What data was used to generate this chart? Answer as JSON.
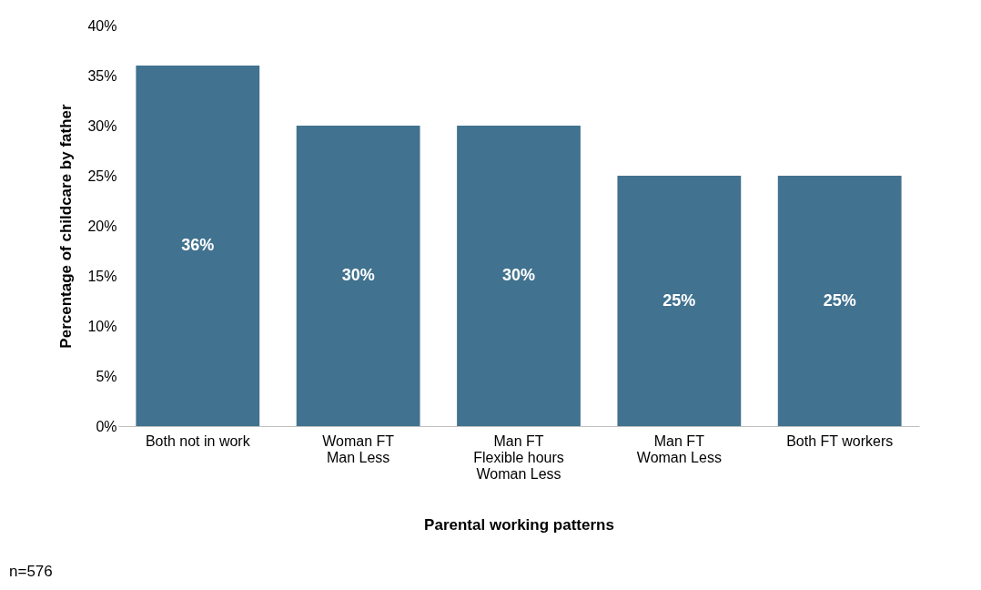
{
  "chart_data": {
    "type": "bar",
    "categories": [
      "Both not in work",
      "Woman FT\nMan Less",
      "Man FT\nFlexible hours\nWoman Less",
      "Man FT\nWoman Less",
      "Both FT workers"
    ],
    "values": [
      36,
      30,
      30,
      25,
      25
    ],
    "color": "#41728f",
    "xlabel": "Parental working patterns",
    "ylabel": "Percentage of childcare by father",
    "ylim": [
      0,
      40
    ],
    "yticks": [
      {
        "value": 0,
        "label": "0%"
      },
      {
        "value": 5,
        "label": "5%"
      },
      {
        "value": 10,
        "label": "10%"
      },
      {
        "value": 15,
        "label": "15%"
      },
      {
        "value": 20,
        "label": "20%"
      },
      {
        "value": 25,
        "label": "25%"
      },
      {
        "value": 30,
        "label": "30%"
      },
      {
        "value": 35,
        "label": "35%"
      },
      {
        "value": 40,
        "label": "40%"
      }
    ],
    "value_labels": [
      "36%",
      "30%",
      "30%",
      "25%",
      "25%"
    ],
    "annotations": [
      "n=576"
    ],
    "grid": false
  }
}
